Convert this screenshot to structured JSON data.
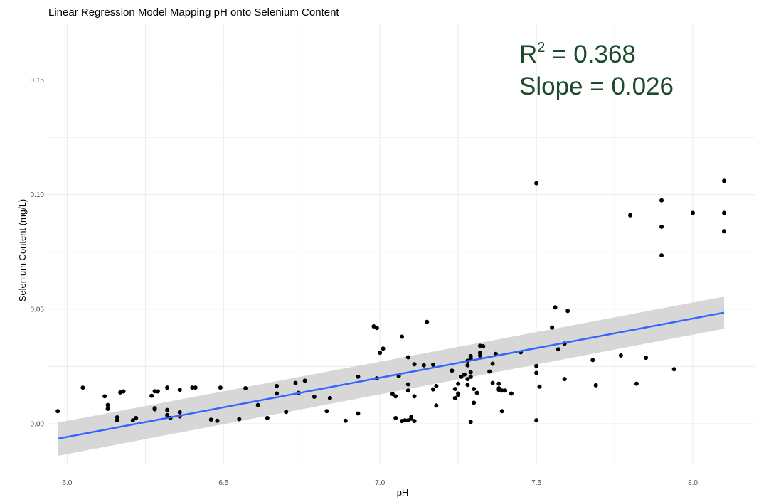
{
  "chart_data": {
    "type": "scatter",
    "title": "Linear Regression Model Mapping pH onto Selenium Content",
    "xlabel": "pH",
    "ylabel": "Selenium Content (mg/L)",
    "xlim": [
      5.94,
      8.2
    ],
    "ylim": [
      -0.018,
      0.175
    ],
    "x_ticks": [
      6.0,
      6.5,
      7.0,
      7.5,
      8.0
    ],
    "x_tick_labels": [
      "6.0",
      "6.5",
      "7.0",
      "7.5",
      "8.0"
    ],
    "y_ticks": [
      0.0,
      0.05,
      0.1,
      0.15
    ],
    "y_tick_labels": [
      "0.00",
      "0.05",
      "0.10",
      "0.15"
    ],
    "grid": true,
    "annotation": {
      "r2_base": "R",
      "r2_sup": "2",
      "r2_value": " = 0.368",
      "slope_text": "Slope = 0.026"
    },
    "colors": {
      "point": "#000000",
      "fit_line": "#3366ff",
      "confidence_band": "#d0d0d0",
      "annotation": "#1c4a2a"
    },
    "fit": {
      "x": [
        5.97,
        8.1
      ],
      "y": [
        -0.0065,
        0.0485
      ],
      "ci_lower": [
        -0.014,
        0.0415
      ],
      "ci_upper": [
        0.0005,
        0.0555
      ]
    },
    "points": [
      [
        5.97,
        0.0055
      ],
      [
        6.05,
        0.0158
      ],
      [
        6.12,
        0.012
      ],
      [
        6.13,
        0.0082
      ],
      [
        6.13,
        0.0065
      ],
      [
        6.16,
        0.0028
      ],
      [
        6.16,
        0.0015
      ],
      [
        6.17,
        0.0137
      ],
      [
        6.18,
        0.0141
      ],
      [
        6.21,
        0.0015
      ],
      [
        6.22,
        0.0025
      ],
      [
        6.27,
        0.0122
      ],
      [
        6.28,
        0.0142
      ],
      [
        6.28,
        0.0068
      ],
      [
        6.29,
        0.0141
      ],
      [
        6.28,
        0.0063
      ],
      [
        6.32,
        0.0158
      ],
      [
        6.32,
        0.006
      ],
      [
        6.32,
        0.0038
      ],
      [
        6.33,
        0.0025
      ],
      [
        6.36,
        0.0148
      ],
      [
        6.36,
        0.005
      ],
      [
        6.36,
        0.0032
      ],
      [
        6.4,
        0.0158
      ],
      [
        6.41,
        0.0158
      ],
      [
        6.46,
        0.0018
      ],
      [
        6.48,
        0.0013
      ],
      [
        6.49,
        0.0158
      ],
      [
        6.55,
        0.002
      ],
      [
        6.57,
        0.0155
      ],
      [
        6.61,
        0.0082
      ],
      [
        6.64,
        0.0025
      ],
      [
        6.67,
        0.0165
      ],
      [
        6.67,
        0.0132
      ],
      [
        6.7,
        0.0052
      ],
      [
        6.73,
        0.0178
      ],
      [
        6.74,
        0.0135
      ],
      [
        6.76,
        0.0188
      ],
      [
        6.79,
        0.0118
      ],
      [
        6.83,
        0.0055
      ],
      [
        6.84,
        0.0112
      ],
      [
        6.89,
        0.0013
      ],
      [
        6.93,
        0.0205
      ],
      [
        6.93,
        0.0045
      ],
      [
        6.98,
        0.0425
      ],
      [
        6.99,
        0.0418
      ],
      [
        6.99,
        0.0198
      ],
      [
        7.0,
        0.031
      ],
      [
        7.01,
        0.0328
      ],
      [
        7.04,
        0.013
      ],
      [
        7.05,
        0.012
      ],
      [
        7.05,
        0.0025
      ],
      [
        7.06,
        0.0208
      ],
      [
        7.07,
        0.038
      ],
      [
        7.07,
        0.0012
      ],
      [
        7.08,
        0.0015
      ],
      [
        7.09,
        0.0015
      ],
      [
        7.09,
        0.0172
      ],
      [
        7.09,
        0.029
      ],
      [
        7.09,
        0.0145
      ],
      [
        7.1,
        0.0022
      ],
      [
        7.1,
        0.003
      ],
      [
        7.11,
        0.0012
      ],
      [
        7.11,
        0.026
      ],
      [
        7.11,
        0.012
      ],
      [
        7.14,
        0.0255
      ],
      [
        7.15,
        0.0445
      ],
      [
        7.17,
        0.0258
      ],
      [
        7.17,
        0.015
      ],
      [
        7.18,
        0.0165
      ],
      [
        7.18,
        0.008
      ],
      [
        7.23,
        0.0232
      ],
      [
        7.24,
        0.0152
      ],
      [
        7.24,
        0.0112
      ],
      [
        7.25,
        0.0175
      ],
      [
        7.25,
        0.0132
      ],
      [
        7.25,
        0.0125
      ],
      [
        7.26,
        0.0205
      ],
      [
        7.27,
        0.0215
      ],
      [
        7.28,
        0.0255
      ],
      [
        7.28,
        0.0275
      ],
      [
        7.28,
        0.0195
      ],
      [
        7.28,
        0.017
      ],
      [
        7.29,
        0.0225
      ],
      [
        7.29,
        0.0285
      ],
      [
        7.29,
        0.0295
      ],
      [
        7.29,
        0.0008
      ],
      [
        7.29,
        0.0205
      ],
      [
        7.3,
        0.0152
      ],
      [
        7.3,
        0.0092
      ],
      [
        7.31,
        0.0135
      ],
      [
        7.32,
        0.0298
      ],
      [
        7.32,
        0.031
      ],
      [
        7.32,
        0.034
      ],
      [
        7.33,
        0.0338
      ],
      [
        7.35,
        0.0228
      ],
      [
        7.36,
        0.0262
      ],
      [
        7.36,
        0.0178
      ],
      [
        7.37,
        0.0305
      ],
      [
        7.38,
        0.0175
      ],
      [
        7.38,
        0.0155
      ],
      [
        7.38,
        0.0148
      ],
      [
        7.39,
        0.0145
      ],
      [
        7.39,
        0.0055
      ],
      [
        7.4,
        0.0145
      ],
      [
        7.42,
        0.0132
      ],
      [
        7.45,
        0.0312
      ],
      [
        7.5,
        0.105
      ],
      [
        7.5,
        0.0252
      ],
      [
        7.5,
        0.0222
      ],
      [
        7.5,
        0.0015
      ],
      [
        7.51,
        0.0162
      ],
      [
        7.55,
        0.042
      ],
      [
        7.56,
        0.0508
      ],
      [
        7.57,
        0.0325
      ],
      [
        7.59,
        0.035
      ],
      [
        7.59,
        0.0195
      ],
      [
        7.6,
        0.0492
      ],
      [
        7.68,
        0.0278
      ],
      [
        7.69,
        0.0168
      ],
      [
        7.77,
        0.0298
      ],
      [
        7.8,
        0.091
      ],
      [
        7.82,
        0.0175
      ],
      [
        7.85,
        0.0288
      ],
      [
        7.9,
        0.0975
      ],
      [
        7.9,
        0.086
      ],
      [
        7.9,
        0.0735
      ],
      [
        7.94,
        0.0238
      ],
      [
        8.0,
        0.092
      ],
      [
        8.1,
        0.106
      ],
      [
        8.1,
        0.092
      ],
      [
        8.1,
        0.084
      ]
    ]
  }
}
